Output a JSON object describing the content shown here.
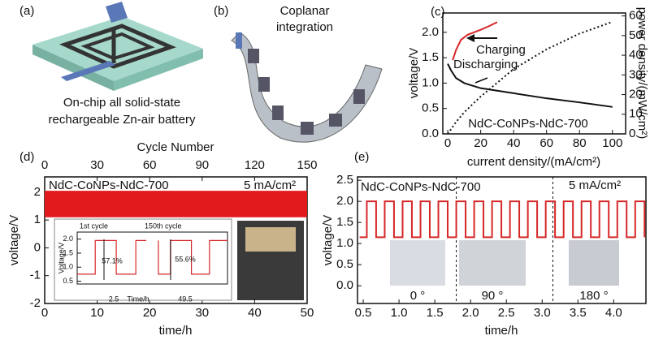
{
  "panels": {
    "a": {
      "label": "(a)",
      "caption": [
        "On-chip all solid-state",
        "rechargeable Zn-air battery"
      ]
    },
    "b": {
      "label": "(b)",
      "caption": [
        "Coplanar",
        "integration"
      ]
    }
  },
  "chart_data": [
    {
      "type": "line",
      "panel_label": "(c)",
      "xlabel": "current density/(mA/cm²)",
      "ylabel": "voltage/V",
      "y2label": "power density/(mW/cm²)",
      "xlim": [
        -3,
        108
      ],
      "xticks": [
        0,
        20,
        40,
        60,
        80,
        100
      ],
      "ylim": [
        0,
        2.38
      ],
      "yticks": [
        {
          "value": 0,
          "label": "0.0"
        },
        {
          "value": 0.5,
          "label": "0.5"
        },
        {
          "value": 1,
          "label": "1.0"
        },
        {
          "value": 1.5,
          "label": "1.5"
        },
        {
          "value": 2,
          "label": "2.0"
        }
      ],
      "y2lim": [
        0,
        61.5
      ],
      "y2ticks": [
        0,
        10,
        20,
        30,
        40,
        50,
        60
      ],
      "series": [
        {
          "name": "Charging",
          "color": "#d62728",
          "style": "solid",
          "x": [
            3,
            5,
            8,
            12,
            20,
            25,
            30
          ],
          "values": [
            1.45,
            1.65,
            1.85,
            1.95,
            2.05,
            2.12,
            2.2
          ]
        },
        {
          "name": "Discharging",
          "color": "#111111",
          "style": "solid",
          "x": [
            0,
            2,
            5,
            10,
            20,
            40,
            60,
            80,
            100
          ],
          "values": [
            1.38,
            1.25,
            1.1,
            1.0,
            0.9,
            0.8,
            0.7,
            0.62,
            0.53
          ]
        },
        {
          "color": "#111111",
          "style": "dotted",
          "axis": "y2",
          "x": [
            0,
            5,
            10,
            20,
            30,
            40,
            60,
            80,
            100
          ],
          "values": [
            0,
            6,
            11,
            19,
            26,
            33,
            43,
            51,
            57
          ]
        }
      ],
      "annotations": [
        "NdC-CoNPs-NdC-700"
      ]
    },
    {
      "type": "band",
      "panel_label": "(d)",
      "xlabel": "time/h",
      "ylabel": "voltage/V",
      "x2label": "Cycle Number",
      "xlim": [
        0,
        50
      ],
      "xticks": [
        0,
        10,
        20,
        30,
        40,
        50
      ],
      "x2lim": [
        0,
        150
      ],
      "x2ticks": [
        0,
        30,
        60,
        90,
        120,
        150
      ],
      "ylim": [
        -2,
        2.55
      ],
      "yticks": [
        -2,
        -1,
        0,
        1,
        2
      ],
      "series": [
        {
          "color": "#e31a1c",
          "x": [
            0,
            50
          ],
          "values": [
            2.05,
            2.05
          ]
        },
        {
          "color": "#e31a1c",
          "x": [
            0,
            50
          ],
          "values": [
            1.1,
            1.1
          ]
        }
      ],
      "annotations": [
        "NdC-CoNPs-NdC-700",
        "5 mA/cm²"
      ]
    },
    {
      "type": "line",
      "panel_label": "(e)",
      "xlabel": "time/h",
      "ylabel": "voltage/V",
      "xlim": [
        0.42,
        4.45
      ],
      "xticks": [
        0.5,
        {
          "value": 1,
          "label": "1.0"
        },
        1.5,
        {
          "value": 2,
          "label": "2.0"
        },
        2.5,
        {
          "value": 3,
          "label": "3.0"
        },
        3.5,
        {
          "value": 4,
          "label": "4.0"
        }
      ],
      "ylim": [
        -0.42,
        2.58
      ],
      "yticks": [
        {
          "value": 0,
          "label": "0.0"
        },
        0.5,
        {
          "value": 1,
          "label": "1.0"
        },
        1.5,
        {
          "value": 2,
          "label": "2.0"
        },
        2.5
      ],
      "dividers": [
        1.8,
        3.15
      ],
      "series": [
        {
          "color": "#d62728",
          "style": "solid",
          "x": [
            0.45,
            0.55,
            0.55,
            0.68,
            0.68,
            0.8,
            0.8,
            0.93,
            0.93,
            1.05,
            1.05,
            1.18,
            1.18,
            1.3,
            1.3,
            1.43,
            1.43,
            1.55,
            1.55,
            1.68,
            1.68,
            1.8,
            1.8,
            1.93,
            1.93,
            2.05,
            2.05,
            2.18,
            2.18,
            2.3,
            2.3,
            2.43,
            2.43,
            2.55,
            2.55,
            2.68,
            2.68,
            2.8,
            2.8,
            2.93,
            2.93,
            3.05,
            3.05,
            3.18,
            3.18,
            3.3,
            3.3,
            3.43,
            3.43,
            3.55,
            3.55,
            3.68,
            3.68,
            3.8,
            3.8,
            3.93,
            3.93,
            4.05,
            4.05,
            4.18,
            4.18,
            4.3,
            4.3,
            4.43,
            4.43
          ],
          "values": [
            1.15,
            1.15,
            2.0,
            2.0,
            1.15,
            1.15,
            2.0,
            2.0,
            1.15,
            1.15,
            2.0,
            2.0,
            1.15,
            1.15,
            2.0,
            2.0,
            1.15,
            1.15,
            2.0,
            2.0,
            1.15,
            1.15,
            2.0,
            2.0,
            1.15,
            1.15,
            2.0,
            2.0,
            1.15,
            1.15,
            2.0,
            2.0,
            1.15,
            1.15,
            2.0,
            2.0,
            1.15,
            1.15,
            2.0,
            2.0,
            1.15,
            1.15,
            2.0,
            2.0,
            1.15,
            1.15,
            2.0,
            2.0,
            1.15,
            1.15,
            2.0,
            2.0,
            1.15,
            1.15,
            2.0,
            2.0,
            1.15,
            1.15,
            2.0,
            2.0,
            1.15,
            1.15,
            2.0,
            2.0,
            1.15
          ]
        }
      ],
      "annotations": [
        "NdC-CoNPs-NdC-700",
        "5 mA/cm²",
        "0 °",
        "90 °",
        "180 °"
      ]
    },
    {
      "type": "line",
      "xlabel": "Time/h",
      "ylabel": "Voltage/V",
      "xlim": [
        0,
        10
      ],
      "ylim": [
        0.4,
        2.25
      ],
      "yticks": [
        {
          "value": 0.5,
          "label": "0.5"
        },
        {
          "value": 1,
          "label": "1.0"
        },
        {
          "value": 1.5,
          "label": "1.5"
        },
        {
          "value": 2,
          "label": "2.0"
        }
      ],
      "series": [
        {
          "color": "#d62728",
          "style": "solid",
          "x": [
            0,
            1.2,
            1.2,
            2.6,
            2.6,
            3.9,
            3.9,
            4.6,
            5,
            5.4,
            5.4,
            6.2,
            6.2,
            7.6,
            7.6,
            8.8,
            8.8,
            10
          ],
          "values": [
            0.75,
            0.75,
            1.95,
            1.95,
            0.75,
            0.75,
            1.95,
            1.95,
            null,
            1.95,
            0.75,
            0.75,
            1.95,
            1.95,
            0.75,
            0.75,
            1.95,
            1.95
          ]
        }
      ],
      "annotations": [
        "1st cycle",
        "150th cycle",
        "57.1%",
        "55.6%",
        "2.5",
        "49.5"
      ]
    }
  ]
}
